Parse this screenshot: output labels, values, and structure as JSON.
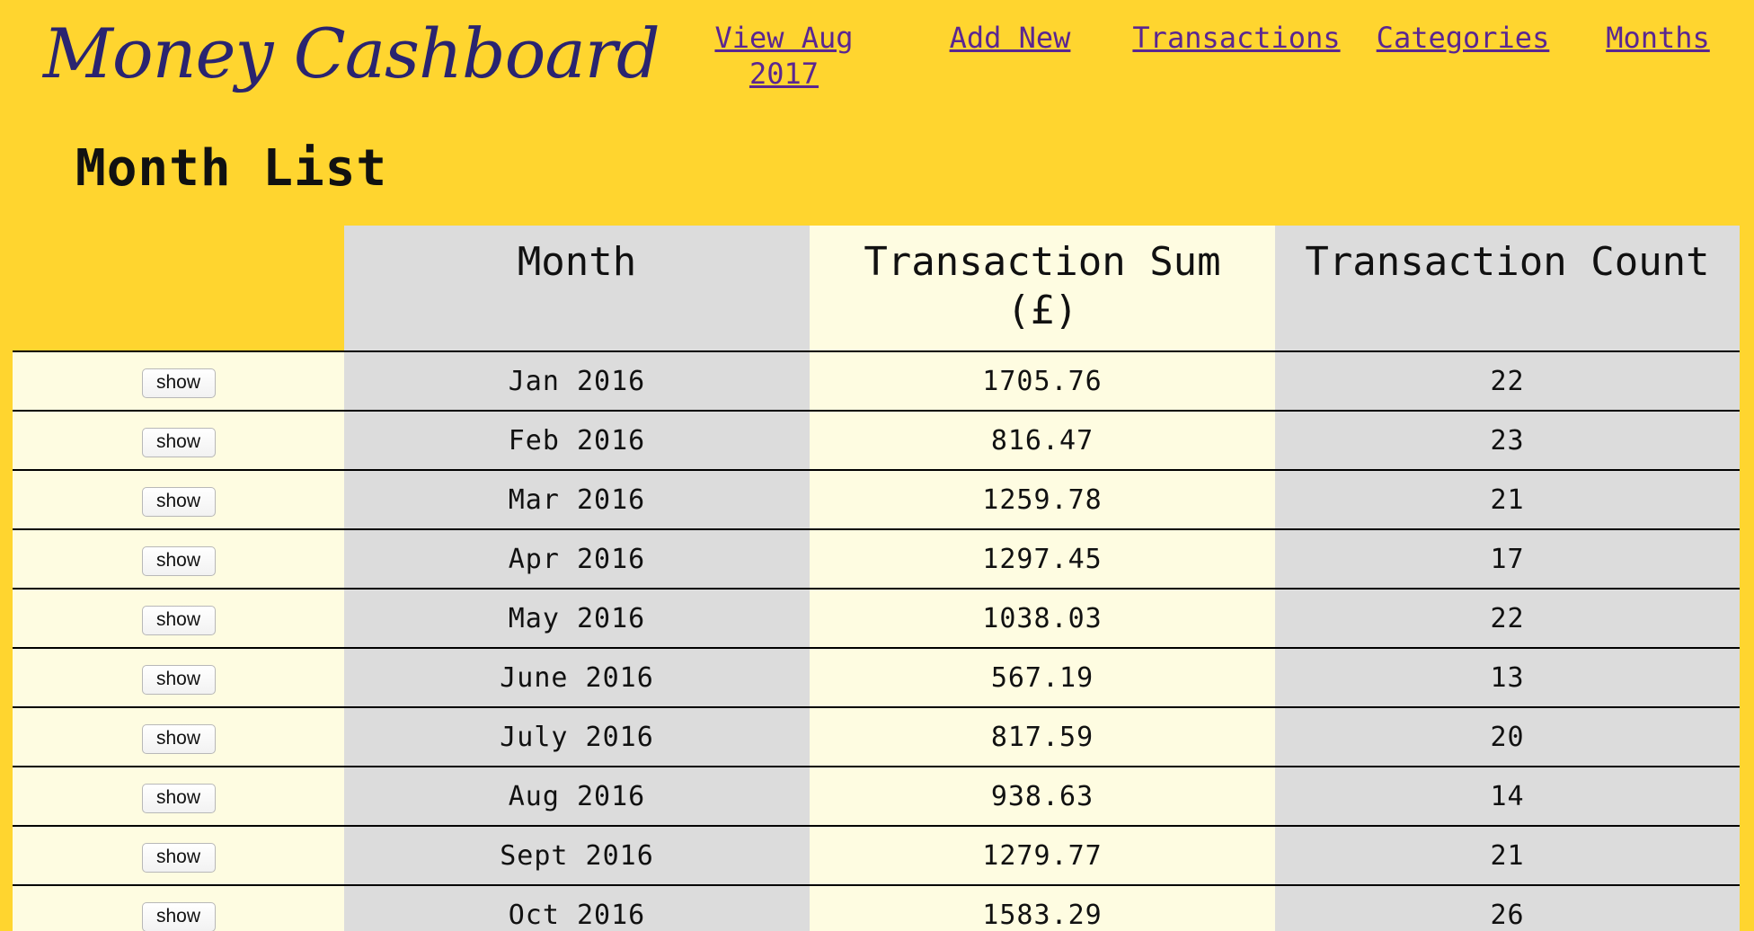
{
  "header": {
    "logo_text": "Money Cashboard",
    "nav": {
      "view_current_line1": "View Aug",
      "view_current_line2": "2017",
      "add_new": "Add New",
      "transactions": "Transactions",
      "categories": "Categories",
      "months": "Months"
    }
  },
  "page_title": "Month List",
  "table": {
    "columns": {
      "blank": "",
      "month": "Month",
      "sum_line1": "Transaction Sum",
      "sum_line2": "(£)",
      "count": "Transaction Count"
    },
    "show_label": "show",
    "rows": [
      {
        "month": "Jan 2016",
        "sum": "1705.76",
        "count": "22"
      },
      {
        "month": "Feb 2016",
        "sum": "816.47",
        "count": "23"
      },
      {
        "month": "Mar 2016",
        "sum": "1259.78",
        "count": "21"
      },
      {
        "month": "Apr 2016",
        "sum": "1297.45",
        "count": "17"
      },
      {
        "month": "May 2016",
        "sum": "1038.03",
        "count": "22"
      },
      {
        "month": "June 2016",
        "sum": "567.19",
        "count": "13"
      },
      {
        "month": "July 2016",
        "sum": "817.59",
        "count": "20"
      },
      {
        "month": "Aug 2016",
        "sum": "938.63",
        "count": "14"
      },
      {
        "month": "Sept 2016",
        "sum": "1279.77",
        "count": "21"
      },
      {
        "month": "Oct 2016",
        "sum": "1583.29",
        "count": "26"
      }
    ]
  },
  "colors": {
    "background": "#FFD52F",
    "logo": "#2A2470",
    "nav_link": "#5A2691",
    "row_light": "#FEFCE1",
    "row_grey": "#DCDCDC"
  }
}
